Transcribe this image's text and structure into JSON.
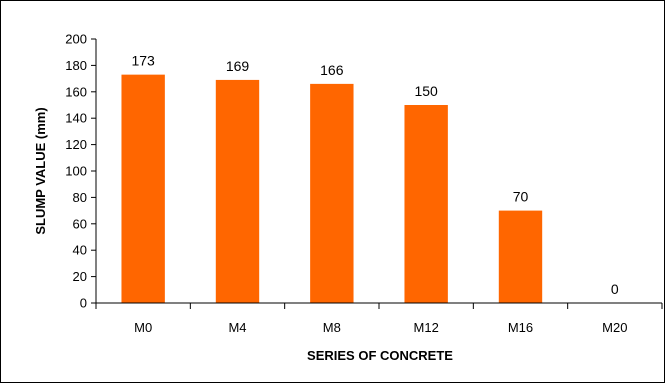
{
  "chart_data": {
    "type": "bar",
    "categories": [
      "M0",
      "M4",
      "M8",
      "M12",
      "M16",
      "M20"
    ],
    "values": [
      173,
      169,
      166,
      150,
      70,
      0
    ],
    "data_labels": [
      "173",
      "169",
      "166",
      "150",
      "70",
      "0"
    ],
    "xlabel": "SERIES OF CONCRETE",
    "ylabel": "SLUMP VALUE (mm)",
    "ylim": [
      0,
      200
    ],
    "yticks": [
      0,
      20,
      40,
      60,
      80,
      100,
      120,
      140,
      160,
      180,
      200
    ],
    "grid": false,
    "legend": "none",
    "bar_color": "#FF6600",
    "axis_color": "#000000"
  }
}
